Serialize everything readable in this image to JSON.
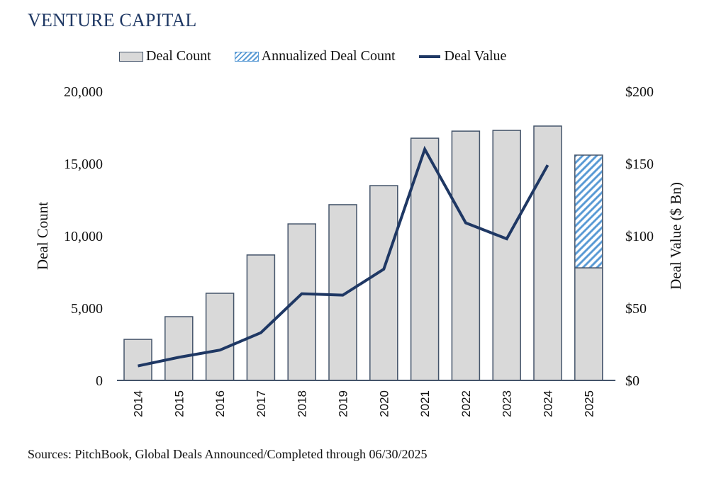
{
  "title": "VENTURE CAPITAL",
  "legend": {
    "deal_count": "Deal Count",
    "annualized": "Annualized Deal Count",
    "deal_value": "Deal Value"
  },
  "footer": "Sources: PitchBook, Global Deals Announced/Completed through 06/30/2025",
  "colors": {
    "bar_fill": "#d9d9d9",
    "bar_stroke": "#44546a",
    "hatch": "#5b9bd5",
    "line": "#1f3864",
    "title": "#1f3864"
  },
  "chart_data": {
    "type": "bar",
    "title": "VENTURE CAPITAL",
    "xlabel": "",
    "ylabel": "Deal Count",
    "y2label": "Deal Value ($ Bn)",
    "ylim": [
      0,
      20000
    ],
    "y2lim": [
      0,
      200
    ],
    "yticks": [
      "0",
      "5,000",
      "10,000",
      "15,000",
      "20,000"
    ],
    "ytick_values": [
      0,
      5000,
      10000,
      15000,
      20000
    ],
    "y2ticks": [
      "$0",
      "$50",
      "$100",
      "$150",
      "$200"
    ],
    "y2tick_values": [
      0,
      50,
      100,
      150,
      200
    ],
    "categories": [
      "2014",
      "2015",
      "2016",
      "2017",
      "2018",
      "2019",
      "2020",
      "2021",
      "2022",
      "2023",
      "2024",
      "2025"
    ],
    "grid": false,
    "legend_position": "top",
    "series": [
      {
        "name": "Deal Count",
        "type": "bar",
        "axis": "left",
        "values": [
          2840,
          4410,
          6030,
          8680,
          10830,
          12160,
          13480,
          16760,
          17250,
          17300,
          17600,
          7790
        ]
      },
      {
        "name": "Annualized Deal Count",
        "type": "bar-stacked-hatched",
        "axis": "left",
        "values": [
          null,
          null,
          null,
          null,
          null,
          null,
          null,
          null,
          null,
          null,
          null,
          7800
        ]
      },
      {
        "name": "Deal Value",
        "type": "line",
        "axis": "right",
        "values": [
          10,
          16,
          21,
          33,
          60,
          59,
          77,
          160,
          109,
          98,
          149,
          null
        ]
      }
    ]
  }
}
